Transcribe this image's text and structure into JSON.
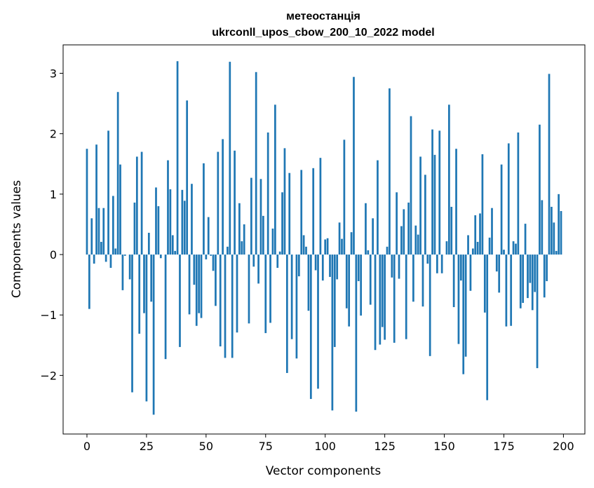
{
  "chart_data": {
    "type": "bar",
    "title_line1": "метеостанція",
    "title_line2": "ukrconll_upos_cbow_200_10_2022 model",
    "xlabel": "Vector components",
    "ylabel": "Components values",
    "xlim": [
      -10,
      209
    ],
    "ylim": [
      -2.97,
      3.47
    ],
    "xticks": [
      0,
      25,
      50,
      75,
      100,
      125,
      150,
      175,
      200
    ],
    "yticks": [
      -2,
      -1,
      0,
      1,
      2,
      3
    ],
    "ytick_labels": [
      "−2",
      "−1",
      "0",
      "1",
      "2",
      "3"
    ],
    "grid": false,
    "bar_color": "#1f77b4",
    "values": [
      1.75,
      -0.9,
      0.6,
      -0.15,
      1.82,
      0.77,
      0.21,
      0.77,
      -0.12,
      2.05,
      -0.22,
      0.97,
      0.1,
      2.69,
      1.49,
      -0.59,
      -0.02,
      0.0,
      -0.41,
      -2.28,
      0.86,
      1.62,
      -1.31,
      1.7,
      -0.97,
      -2.43,
      0.36,
      -0.78,
      -2.65,
      1.11,
      0.8,
      -0.06,
      0.0,
      -1.73,
      1.56,
      1.08,
      0.32,
      0.06,
      3.2,
      -1.53,
      1.07,
      0.89,
      2.55,
      -0.99,
      1.17,
      -0.5,
      -1.18,
      -0.97,
      -1.05,
      1.51,
      -0.08,
      0.62,
      -0.02,
      -0.27,
      -0.85,
      1.7,
      -1.52,
      1.91,
      -1.71,
      0.13,
      3.19,
      -1.71,
      1.72,
      -1.29,
      0.85,
      0.22,
      0.5,
      0.0,
      -1.14,
      1.27,
      -0.2,
      3.02,
      -0.48,
      1.25,
      0.64,
      -1.3,
      2.02,
      -1.13,
      0.43,
      2.48,
      -0.22,
      0.05,
      1.03,
      1.76,
      -1.96,
      1.35,
      -1.4,
      0.0,
      -1.72,
      -0.36,
      1.4,
      0.32,
      0.13,
      -0.93,
      -2.39,
      1.43,
      -0.26,
      -2.22,
      1.6,
      -0.43,
      0.25,
      0.27,
      -0.37,
      -2.58,
      -1.53,
      -0.41,
      0.53,
      0.26,
      1.9,
      -0.89,
      -1.19,
      0.37,
      2.94,
      -2.6,
      -0.44,
      -1.01,
      0.0,
      0.85,
      0.07,
      -0.83,
      0.6,
      -1.58,
      1.56,
      -1.49,
      -1.2,
      -1.41,
      0.13,
      2.75,
      -0.38,
      -1.46,
      1.03,
      -0.4,
      0.47,
      0.75,
      -1.4,
      0.86,
      2.29,
      -0.78,
      0.48,
      0.33,
      1.62,
      -0.86,
      1.32,
      -0.15,
      -1.68,
      2.07,
      1.65,
      -0.31,
      2.05,
      -0.31,
      0.0,
      0.22,
      2.48,
      0.79,
      -0.87,
      1.75,
      -1.48,
      -0.43,
      -1.98,
      -1.69,
      0.32,
      -0.6,
      0.1,
      0.65,
      0.21,
      0.68,
      1.66,
      -0.96,
      -2.41,
      0.28,
      0.77,
      0.0,
      -0.28,
      -0.63,
      1.49,
      0.08,
      -1.19,
      1.84,
      -1.18,
      0.22,
      0.18,
      2.02,
      -0.89,
      -0.8,
      0.51,
      -0.72,
      -0.47,
      -0.92,
      -0.62,
      -1.88,
      2.15,
      0.9,
      -0.71,
      -0.44,
      2.99,
      0.79,
      0.53,
      0.06,
      1.0,
      0.72
    ]
  }
}
